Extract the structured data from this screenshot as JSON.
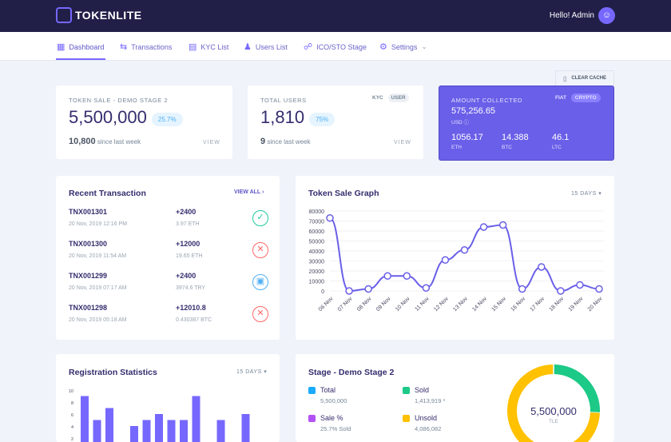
{
  "header": {
    "brand": "TOKENLITE",
    "greeting": "Hello! Admin"
  },
  "nav": {
    "items": [
      {
        "label": "Dashboard",
        "icon": "grid-icon"
      },
      {
        "label": "Transactions",
        "icon": "swap-icon"
      },
      {
        "label": "KYC List",
        "icon": "document-icon"
      },
      {
        "label": "Users List",
        "icon": "users-icon"
      },
      {
        "label": "ICO/STO Stage",
        "icon": "coins-icon"
      },
      {
        "label": "Settings",
        "icon": "gear-icon"
      }
    ],
    "clear_cache": "CLEAR CACHE"
  },
  "token_sale": {
    "label": "TOKEN SALE - DEMO STAGE 2",
    "value": "5,500,000",
    "percent": "25.7%",
    "since_value": "10,800",
    "since_label": "since last week",
    "view": "VIEW"
  },
  "users": {
    "label": "TOTAL USERS",
    "toggle": [
      "KYC",
      "USER"
    ],
    "value": "1,810",
    "percent": "75%",
    "since_value": "9",
    "since_label": "since last week",
    "view": "VIEW"
  },
  "amount": {
    "label": "AMOUNT COLLECTED",
    "toggle": [
      "FIAT",
      "CRYPTO"
    ],
    "value": "575,256.65",
    "currency": "USD",
    "coins": [
      {
        "value": "1056.17",
        "unit": "ETH"
      },
      {
        "value": "14.388",
        "unit": "BTC"
      },
      {
        "value": "46.1",
        "unit": "LTC"
      }
    ]
  },
  "recent": {
    "title": "Recent Transaction",
    "view_all": "VIEW ALL",
    "rows": [
      {
        "id": "TNX001301",
        "date": "20 Nov, 2019 12:16 PM",
        "amount": "+2400",
        "currency": "3.97 ETH",
        "status": "approved"
      },
      {
        "id": "TNX001300",
        "date": "20 Nov, 2019 11:54 AM",
        "amount": "+12000",
        "currency": "19.65 ETH",
        "status": "canceled"
      },
      {
        "id": "TNX001299",
        "date": "20 Nov, 2019 07:17 AM",
        "amount": "+2400",
        "currency": "3974.6 TRY",
        "status": "pending"
      },
      {
        "id": "TNX001298",
        "date": "20 Nov, 2019 05:18 AM",
        "amount": "+12010.8",
        "currency": "0.430387 BTC",
        "status": "canceled"
      }
    ]
  },
  "colors": {
    "accent": "#7668fe",
    "header": "#211f48",
    "approved": "#1cc9a0",
    "canceled": "#ff6868",
    "pending": "#4eb0f5",
    "total": "#1babfe",
    "sold": "#1cc987",
    "sale": "#b350f5",
    "unsold": "#ffc100"
  },
  "chart_data": [
    {
      "type": "line",
      "title": "Token Sale Graph",
      "range": "15 DAYS",
      "categories": [
        "06 Nov",
        "07 Nov",
        "08 Nov",
        "09 Nov",
        "10 Nov",
        "11 Nov",
        "12 Nov",
        "13 Nov",
        "14 Nov",
        "15 Nov",
        "16 Nov",
        "17 Nov",
        "18 Nov",
        "19 Nov",
        "20 Nov"
      ],
      "values": [
        73000,
        0,
        2000,
        15000,
        15000,
        3000,
        31000,
        41000,
        64000,
        66000,
        2000,
        24000,
        0,
        6000,
        2000
      ],
      "ylim": [
        0,
        80000
      ],
      "yticks": [
        0,
        10000,
        20000,
        30000,
        40000,
        50000,
        60000,
        70000,
        80000
      ],
      "grid": true
    },
    {
      "type": "bar",
      "title": "Registration Statistics",
      "range": "15 DAYS",
      "values": [
        9,
        5,
        7,
        0,
        4,
        5,
        6,
        5,
        5,
        9,
        0,
        5,
        1,
        6
      ],
      "ylim": [
        0,
        10
      ],
      "yticks": [
        2,
        4,
        6,
        8,
        10
      ]
    },
    {
      "type": "pie",
      "title": "Stage - Demo Stage 2",
      "center_value": "5,500,000",
      "center_unit": "TLE",
      "legend": [
        {
          "name": "Total",
          "value": "5,500,000"
        },
        {
          "name": "Sold",
          "value": "1,413,919 *"
        },
        {
          "name": "Sale %",
          "value": "25.7% Sold"
        },
        {
          "name": "Unsold",
          "value": "4,086,082"
        }
      ],
      "slices": [
        {
          "name": "Sold",
          "value": 1413919
        },
        {
          "name": "Unsold",
          "value": 4086082
        }
      ]
    }
  ]
}
